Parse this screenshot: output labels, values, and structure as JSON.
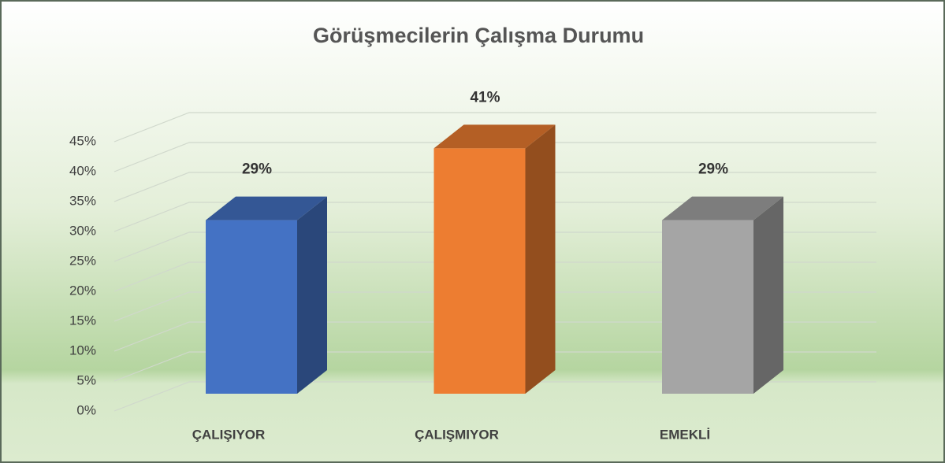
{
  "chart_data": {
    "type": "bar3d",
    "title": "Görüşmecilerin Çalışma Durumu",
    "categories": [
      "ÇALIŞIYOR",
      "ÇALIŞMIYOR",
      "EMEKLİ"
    ],
    "values": [
      29,
      41,
      29
    ],
    "value_labels": [
      "29%",
      "41%",
      "29%"
    ],
    "colors": [
      "#4472c4",
      "#ed7d31",
      "#a5a5a5"
    ],
    "ylim": [
      0,
      45
    ],
    "yticks": [
      {
        "value": 0,
        "label": "0%"
      },
      {
        "value": 5,
        "label": "5%"
      },
      {
        "value": 10,
        "label": "10%"
      },
      {
        "value": 15,
        "label": "15%"
      },
      {
        "value": 20,
        "label": "20%"
      },
      {
        "value": 25,
        "label": "25%"
      },
      {
        "value": 30,
        "label": "30%"
      },
      {
        "value": 35,
        "label": "35%"
      },
      {
        "value": 40,
        "label": "40%"
      },
      {
        "value": 45,
        "label": "45%"
      }
    ],
    "grid": true
  }
}
